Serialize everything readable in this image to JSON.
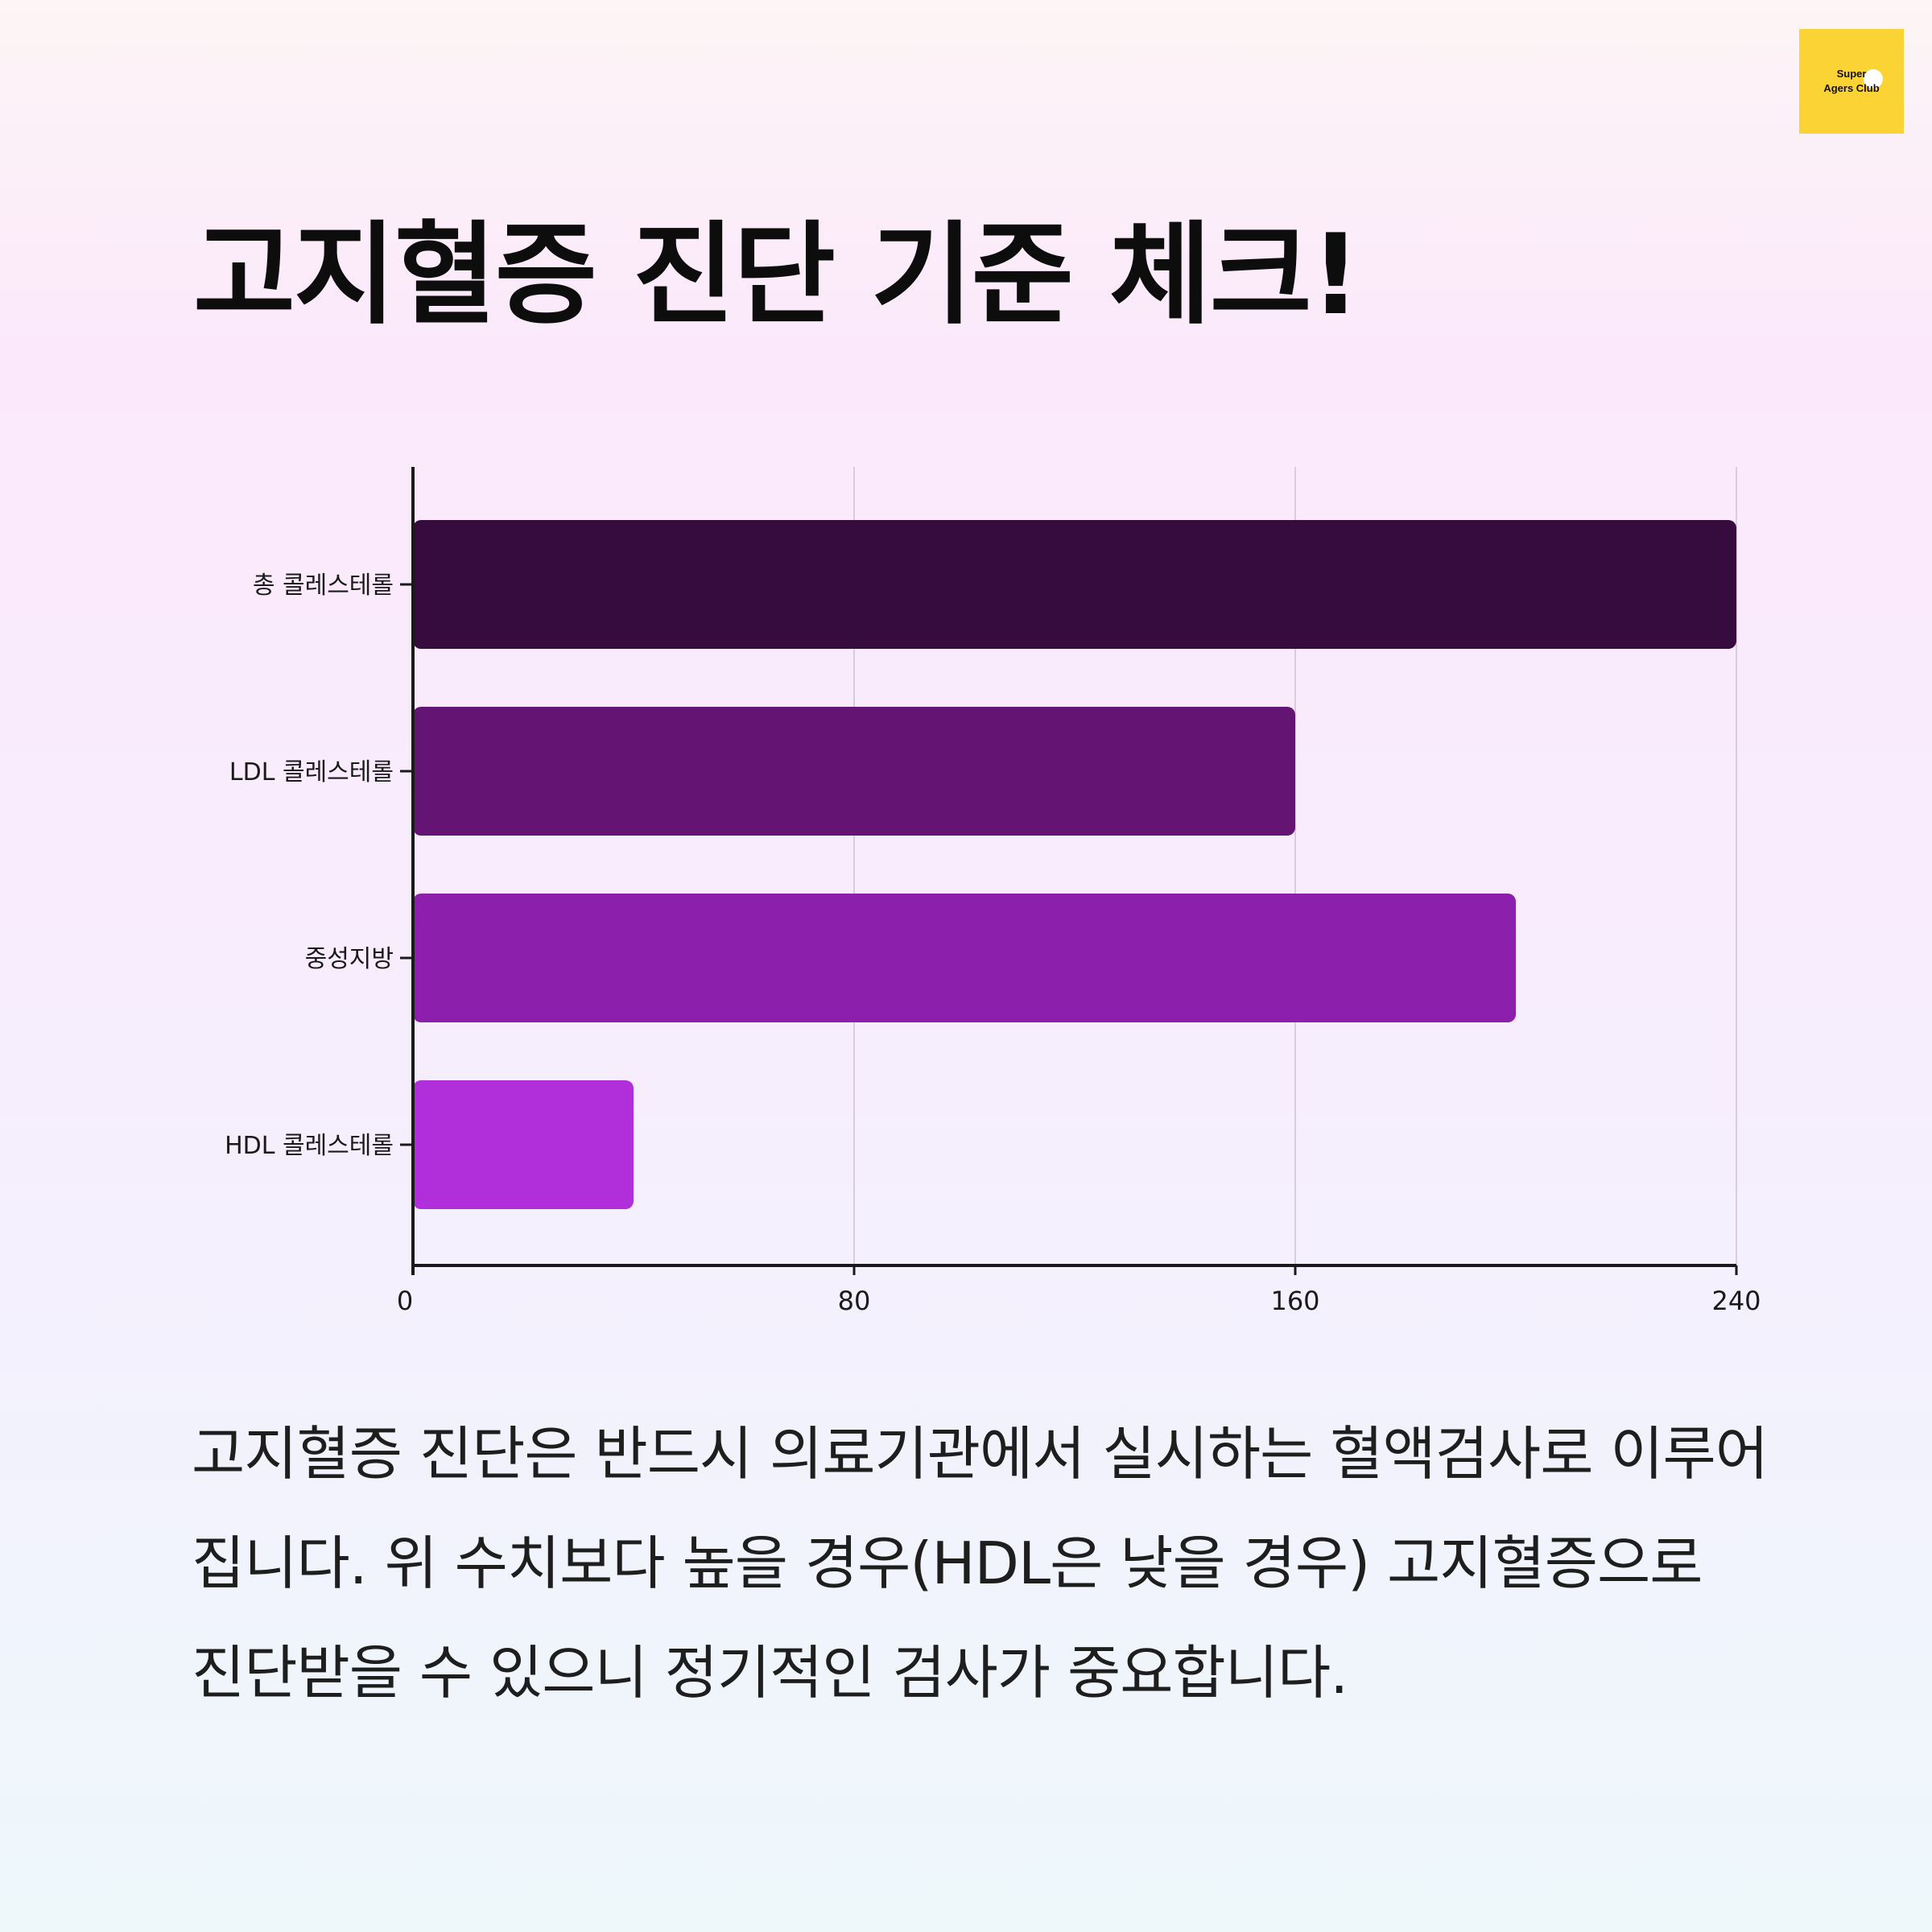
{
  "brand": {
    "logo_line1": "Super",
    "logo_line2": "Agers Club",
    "logo_color": "#fbd335"
  },
  "title": "고지혈증 진단 기준 체크!",
  "chart_data": {
    "type": "bar",
    "orientation": "horizontal",
    "categories": [
      "총 콜레스테롤",
      "LDL 콜레스테롤",
      "중성지방",
      "HDL 콜레스테롤"
    ],
    "values": [
      240,
      160,
      200,
      40
    ],
    "colors": [
      "#360c3e",
      "#641473",
      "#8c1fab",
      "#b02fdb"
    ],
    "xlim": [
      0,
      240
    ],
    "xticks": [
      "0",
      "80",
      "160",
      "240"
    ],
    "grid": true,
    "title": "",
    "xlabel": "",
    "ylabel": ""
  },
  "description": "고지혈증 진단은 반드시 의료기관에서 실시하는 혈액검사로 이루어집니다. 위 수치보다 높을 경우(HDL은 낮을 경우) 고지혈증으로 진단받을 수 있으니 정기적인 검사가 중요합니다."
}
